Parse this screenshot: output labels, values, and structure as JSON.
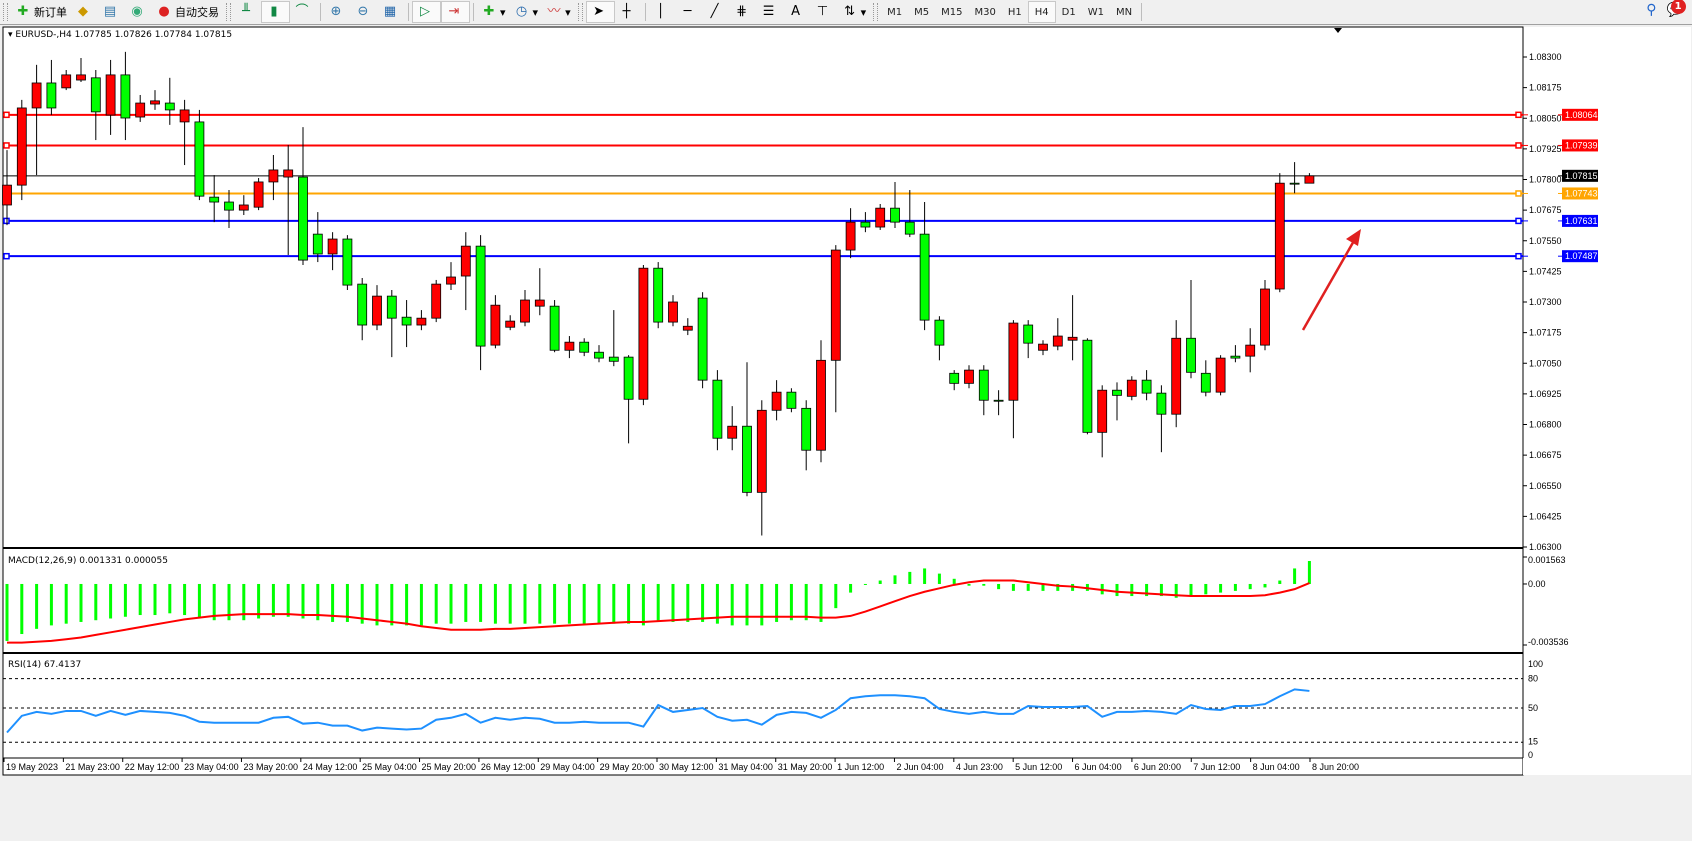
{
  "toolbar": {
    "new_order": "新订单",
    "auto_trading": "自动交易",
    "timeframes": [
      "M1",
      "M5",
      "M15",
      "M30",
      "H1",
      "H4",
      "D1",
      "W1",
      "MN"
    ],
    "active_timeframe": "H4",
    "text_tool": "A",
    "notification_count": "1",
    "icons": [
      "new-order-icon",
      "history-center-icon",
      "market-watch-icon",
      "signals-icon",
      "auto-trading-icon",
      "bar-chart-icon",
      "candlestick-icon",
      "line-chart-icon",
      "zoom-in-icon",
      "zoom-out-icon",
      "tile-windows-icon",
      "autoscroll-icon",
      "chart-shift-icon",
      "new-chart-icon",
      "clock-icon",
      "indicators-icon",
      "cursor-icon",
      "crosshair-icon",
      "vertical-line-icon",
      "horizontal-line-icon",
      "trendline-icon",
      "fibonacci-expansion-icon",
      "fibonacci-retracement-icon",
      "text-icon",
      "text-label-icon",
      "arrows-icon",
      "search-icon",
      "chat-icon"
    ]
  },
  "chart": {
    "header": "EURUSD-,H4  1.07785 1.07826 1.07784 1.07815",
    "colors": {
      "bull": "#ff0000",
      "bear": "#00ff00",
      "macd_hist": "#00ff00",
      "macd_signal": "#ff0000",
      "rsi": "#1e90ff",
      "arrow": "#e02020"
    },
    "price_axis": [
      "1.08300",
      "1.08175",
      "1.08050",
      "1.07925",
      "1.07800",
      "1.07675",
      "1.07550",
      "1.07425",
      "1.07300",
      "1.07175",
      "1.07050",
      "1.06925",
      "1.06800",
      "1.06675",
      "1.06550",
      "1.06425",
      "1.06300"
    ],
    "ylim": [
      1.063,
      1.083
    ],
    "levels": [
      {
        "price": 1.08064,
        "label": "1.08064",
        "color": "#ff0000"
      },
      {
        "price": 1.07939,
        "label": "1.07939",
        "color": "#ff0000"
      },
      {
        "price": 1.07743,
        "label": "1.07743",
        "color": "#ffa500"
      },
      {
        "price": 1.07631,
        "label": "1.07631",
        "color": "#0000ff"
      },
      {
        "price": 1.07487,
        "label": "1.07487",
        "color": "#0000ff"
      }
    ],
    "bid": {
      "price": 1.07815,
      "label": "1.07815"
    },
    "time_axis": [
      "19 May 2023",
      "21 May 23:00",
      "22 May 12:00",
      "23 May 04:00",
      "23 May 20:00",
      "24 May 12:00",
      "25 May 04:00",
      "25 May 20:00",
      "26 May 12:00",
      "29 May 04:00",
      "29 May 20:00",
      "30 May 12:00",
      "31 May 04:00",
      "31 May 20:00",
      "1 Jun 12:00",
      "2 Jun 04:00",
      "4 Jun 23:00",
      "5 Jun 12:00",
      "6 Jun 04:00",
      "6 Jun 20:00",
      "7 Jun 12:00",
      "8 Jun 04:00",
      "8 Jun 20:00"
    ]
  },
  "chart_data": [
    {
      "type": "candlestick",
      "title": "EURUSD-,H4",
      "ylim": [
        1.063,
        1.083
      ],
      "ohlc": [
        [
          1.07696,
          1.0792,
          1.07614,
          1.07777
        ],
        [
          1.07777,
          1.08125,
          1.07716,
          1.08092
        ],
        [
          1.08092,
          1.08268,
          1.07818,
          1.08194
        ],
        [
          1.08194,
          1.08288,
          1.08063,
          1.08092
        ],
        [
          1.08174,
          1.08247,
          1.08165,
          1.08227
        ],
        [
          1.08206,
          1.08296,
          1.08198,
          1.08227
        ],
        [
          1.08215,
          1.08247,
          1.07961,
          1.08076
        ],
        [
          1.08063,
          1.08288,
          1.07982,
          1.08227
        ],
        [
          1.08227,
          1.08321,
          1.07961,
          1.08051
        ],
        [
          1.08055,
          1.08145,
          1.08035,
          1.08112
        ],
        [
          1.08108,
          1.08165,
          1.08084,
          1.08121
        ],
        [
          1.08112,
          1.08215,
          1.08023,
          1.08084
        ],
        [
          1.08035,
          1.08125,
          1.07859,
          1.08084
        ],
        [
          1.08035,
          1.08084,
          1.07716,
          1.07732
        ],
        [
          1.07728,
          1.07818,
          1.07626,
          1.07708
        ],
        [
          1.07708,
          1.07757,
          1.07602,
          1.07675
        ],
        [
          1.07675,
          1.07736,
          1.07655,
          1.07696
        ],
        [
          1.07687,
          1.07806,
          1.07675,
          1.0779
        ],
        [
          1.0779,
          1.079,
          1.07716,
          1.07839
        ],
        [
          1.0781,
          1.07941,
          1.07492,
          1.07839
        ],
        [
          1.0781,
          1.08014,
          1.07451,
          1.07471
        ],
        [
          1.07577,
          1.07667,
          1.07463,
          1.07496
        ],
        [
          1.07496,
          1.07585,
          1.0743,
          1.07557
        ],
        [
          1.07557,
          1.07573,
          1.07349,
          1.07369
        ],
        [
          1.07373,
          1.07398,
          1.07144,
          1.07206
        ],
        [
          1.07206,
          1.07369,
          1.07185,
          1.07324
        ],
        [
          1.07324,
          1.07349,
          1.07075,
          1.07234
        ],
        [
          1.07238,
          1.07308,
          1.07116,
          1.07206
        ],
        [
          1.07206,
          1.07267,
          1.07185,
          1.07234
        ],
        [
          1.07234,
          1.0739,
          1.07218,
          1.07373
        ],
        [
          1.07373,
          1.07463,
          1.07349,
          1.07402
        ],
        [
          1.07406,
          1.07585,
          1.07267,
          1.07528
        ],
        [
          1.07528,
          1.07573,
          1.07022,
          1.0712
        ],
        [
          1.07124,
          1.07328,
          1.07111,
          1.07287
        ],
        [
          1.07197,
          1.07246,
          1.07185,
          1.07222
        ],
        [
          1.07218,
          1.07349,
          1.07201,
          1.07308
        ],
        [
          1.07283,
          1.07438,
          1.07246,
          1.07308
        ],
        [
          1.07283,
          1.07308,
          1.07095,
          1.07103
        ],
        [
          1.07103,
          1.07161,
          1.07071,
          1.07136
        ],
        [
          1.07136,
          1.07152,
          1.07079,
          1.07095
        ],
        [
          1.07095,
          1.07124,
          1.07054,
          1.07071
        ],
        [
          1.07075,
          1.07267,
          1.07038,
          1.07058
        ],
        [
          1.07075,
          1.07083,
          1.06723,
          1.06903
        ],
        [
          1.06903,
          1.07451,
          1.06879,
          1.07438
        ],
        [
          1.07438,
          1.07463,
          1.07193,
          1.07218
        ],
        [
          1.07218,
          1.07328,
          1.07201,
          1.073
        ],
        [
          1.07185,
          1.07234,
          1.07165,
          1.07201
        ],
        [
          1.07316,
          1.0734,
          1.06948,
          1.06981
        ],
        [
          1.06981,
          1.07022,
          1.06695,
          1.06744
        ],
        [
          1.06744,
          1.06875,
          1.06695,
          1.06793
        ],
        [
          1.06793,
          1.07054,
          1.06507,
          1.06523
        ],
        [
          1.06523,
          1.06899,
          1.06347,
          1.06858
        ],
        [
          1.06858,
          1.06981,
          1.06817,
          1.06932
        ],
        [
          1.06932,
          1.06948,
          1.0685,
          1.06866
        ],
        [
          1.06866,
          1.06899,
          1.06613,
          1.06695
        ],
        [
          1.06695,
          1.07144,
          1.06646,
          1.07062
        ],
        [
          1.07062,
          1.07532,
          1.0685,
          1.07512
        ],
        [
          1.07512,
          1.07683,
          1.07479,
          1.07626
        ],
        [
          1.07626,
          1.07667,
          1.07585,
          1.07606
        ],
        [
          1.07606,
          1.077,
          1.07594,
          1.07683
        ],
        [
          1.07683,
          1.0779,
          1.07602,
          1.07626
        ],
        [
          1.07626,
          1.07757,
          1.07565,
          1.07577
        ],
        [
          1.07577,
          1.07708,
          1.07185,
          1.07226
        ],
        [
          1.07226,
          1.07242,
          1.07062,
          1.07124
        ],
        [
          1.07009,
          1.07022,
          1.0694,
          1.06968
        ],
        [
          1.06968,
          1.07042,
          1.06948,
          1.07022
        ],
        [
          1.07022,
          1.07042,
          1.06838,
          1.06899
        ],
        [
          1.06899,
          1.0694,
          1.06838,
          1.06895
        ],
        [
          1.06899,
          1.07226,
          1.06744,
          1.07214
        ],
        [
          1.07206,
          1.07226,
          1.07071,
          1.07132
        ],
        [
          1.07103,
          1.07144,
          1.07083,
          1.07128
        ],
        [
          1.0712,
          1.07234,
          1.07103,
          1.07161
        ],
        [
          1.07144,
          1.07328,
          1.07062,
          1.07156
        ],
        [
          1.07144,
          1.07152,
          1.0676,
          1.06768
        ],
        [
          1.06768,
          1.0696,
          1.06666,
          1.0694
        ],
        [
          1.0694,
          1.06972,
          1.06817,
          1.06919
        ],
        [
          1.06915,
          1.06997,
          1.06899,
          1.06981
        ],
        [
          1.06981,
          1.07022,
          1.06899,
          1.06928
        ],
        [
          1.06928,
          1.0696,
          1.06687,
          1.06842
        ],
        [
          1.06842,
          1.07226,
          1.06789,
          1.07152
        ],
        [
          1.07152,
          1.0739,
          1.06989,
          1.07013
        ],
        [
          1.07009,
          1.07062,
          1.06915,
          1.06932
        ],
        [
          1.06932,
          1.07083,
          1.06919,
          1.07071
        ],
        [
          1.07079,
          1.07124,
          1.07054,
          1.07071
        ],
        [
          1.07079,
          1.07193,
          1.07013,
          1.07124
        ],
        [
          1.07124,
          1.0739,
          1.07103,
          1.07353
        ],
        [
          1.07353,
          1.07826,
          1.0734,
          1.07785
        ],
        [
          1.07785,
          1.07871,
          1.07744,
          1.07781
        ],
        [
          1.07785,
          1.07826,
          1.07784,
          1.07815
        ]
      ]
    },
    {
      "type": "bar+line",
      "title": "MACD(12,26,9) 0.001331 0.000055",
      "ylim": [
        -0.003536,
        0.001563
      ],
      "tick_labels": [
        "0.001563",
        "0.00",
        "-0.003536"
      ],
      "histogram": [
        -0.0033,
        -0.0029,
        -0.0026,
        -0.0024,
        -0.0023,
        -0.0022,
        -0.0021,
        -0.002,
        -0.0019,
        -0.0018,
        -0.0018,
        -0.0017,
        -0.0018,
        -0.002,
        -0.0021,
        -0.0021,
        -0.0021,
        -0.002,
        -0.0019,
        -0.0019,
        -0.002,
        -0.0021,
        -0.0022,
        -0.0022,
        -0.0023,
        -0.0024,
        -0.0024,
        -0.0024,
        -0.0024,
        -0.0023,
        -0.0023,
        -0.0022,
        -0.0022,
        -0.0023,
        -0.0023,
        -0.0023,
        -0.0023,
        -0.0023,
        -0.0023,
        -0.0023,
        -0.0023,
        -0.0023,
        -0.0023,
        -0.0024,
        -0.0022,
        -0.0022,
        -0.0022,
        -0.0022,
        -0.0023,
        -0.0024,
        -0.0024,
        -0.0024,
        -0.0022,
        -0.0021,
        -0.0021,
        -0.0022,
        -0.0014,
        -0.0005,
        0.0,
        0.0002,
        0.0005,
        0.0007,
        0.0009,
        0.0006,
        0.0003,
        -0.0001,
        -0.0001,
        -0.0003,
        -0.0004,
        -0.0004,
        -0.0004,
        -0.0004,
        -0.0004,
        -0.0004,
        -0.0006,
        -0.0007,
        -0.0007,
        -0.0007,
        -0.0007,
        -0.0008,
        -0.0007,
        -0.0006,
        -0.0005,
        -0.0004,
        -0.0003,
        -0.0002,
        0.0002,
        0.0009,
        0.001331
      ],
      "signal": [
        -0.0034,
        -0.0034,
        -0.00335,
        -0.0033,
        -0.0032,
        -0.0031,
        -0.00295,
        -0.0028,
        -0.00265,
        -0.0025,
        -0.00235,
        -0.0022,
        -0.00205,
        -0.00195,
        -0.00185,
        -0.0018,
        -0.00175,
        -0.00175,
        -0.00175,
        -0.00175,
        -0.0018,
        -0.0018,
        -0.00185,
        -0.0019,
        -0.002,
        -0.0021,
        -0.0022,
        -0.0023,
        -0.00245,
        -0.00255,
        -0.00265,
        -0.00265,
        -0.00265,
        -0.0026,
        -0.0026,
        -0.00255,
        -0.0025,
        -0.00245,
        -0.0024,
        -0.00235,
        -0.0023,
        -0.00225,
        -0.0022,
        -0.0022,
        -0.00215,
        -0.0021,
        -0.00205,
        -0.002,
        -0.00195,
        -0.0019,
        -0.0019,
        -0.0019,
        -0.0019,
        -0.0019,
        -0.0019,
        -0.00195,
        -0.00195,
        -0.00185,
        -0.0016,
        -0.0013,
        -0.001,
        -0.0007,
        -0.00045,
        -0.00025,
        -5e-05,
        0.0001,
        0.0002,
        0.0002,
        0.0002,
        0.0001,
        0.0,
        -0.0001,
        -0.00015,
        -0.00025,
        -0.00035,
        -0.00045,
        -0.0005,
        -0.00055,
        -0.0006,
        -0.00065,
        -0.0007,
        -0.0007,
        -0.0007,
        -0.0007,
        -0.0007,
        -0.00065,
        -0.0005,
        -0.0003,
        5.5e-05
      ]
    },
    {
      "type": "line",
      "title": "RSI(14) 67.4137",
      "ylim": [
        0,
        100
      ],
      "tick_labels": [
        "100",
        "80",
        "50",
        "15",
        "0"
      ],
      "levels": [
        80,
        50,
        15
      ],
      "values": [
        25,
        42,
        46,
        44,
        47,
        47,
        42,
        47,
        43,
        47,
        46,
        45,
        42,
        36,
        35,
        35,
        35,
        35,
        40,
        41,
        34,
        35,
        32,
        32,
        27,
        30,
        29,
        28,
        29,
        38,
        40,
        44,
        35,
        40,
        38,
        40,
        39,
        35,
        35,
        36,
        35,
        35,
        35,
        31,
        53,
        46,
        48,
        50,
        41,
        37,
        38,
        33,
        43,
        46,
        45,
        40,
        48,
        60,
        62,
        63,
        63,
        62,
        60,
        49,
        46,
        44,
        46,
        44,
        44,
        52,
        51,
        51,
        51,
        52,
        41,
        46,
        46,
        47,
        46,
        44,
        53,
        49,
        48,
        52,
        52,
        54,
        62,
        69,
        67.4137
      ]
    }
  ]
}
